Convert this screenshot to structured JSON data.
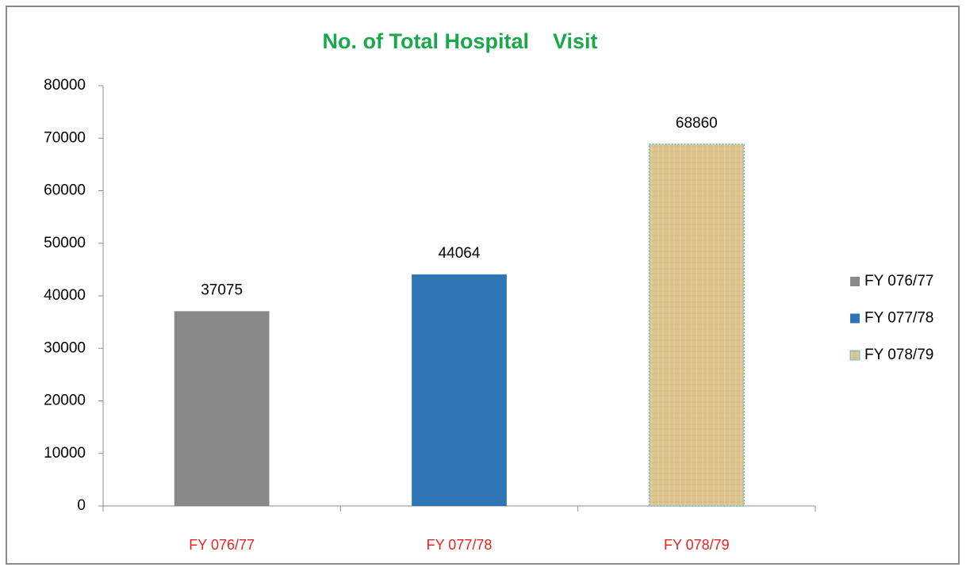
{
  "chart_data": {
    "type": "bar",
    "title": "No. of Total Hospital    Visit",
    "categories": [
      "FY 076/77",
      "FY 077/78",
      "FY 078/79"
    ],
    "values": [
      37075,
      44064,
      68860
    ],
    "colors": [
      "#898989",
      "#2e75b6",
      "#dcc48f"
    ],
    "ylim": [
      0,
      80000
    ],
    "yticks": [
      0,
      10000,
      20000,
      30000,
      40000,
      50000,
      60000,
      70000,
      80000
    ],
    "legend": "right"
  }
}
